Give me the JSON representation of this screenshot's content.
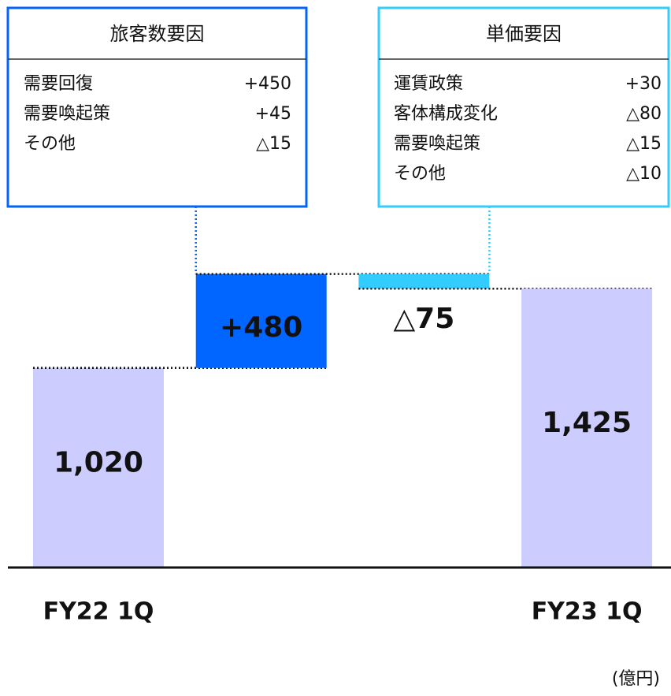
{
  "chart_data": {
    "type": "waterfall",
    "categories": [
      "FY22 1Q",
      null,
      null,
      "FY23 1Q"
    ],
    "values": [
      1020,
      480,
      -75,
      1425
    ],
    "value_labels": [
      "1,020",
      "+480",
      "△75",
      "1,425"
    ],
    "colors": [
      "#ccccff",
      "#0066ff",
      "#33ccff",
      "#ccccff"
    ],
    "ylim": [
      0,
      2900
    ],
    "unit": "(億円)",
    "annotations": [
      {
        "title": "旅客数要因",
        "color": "#0066ff",
        "items": [
          {
            "label": "需要回復",
            "value": "+450"
          },
          {
            "label": "需要喚起策",
            "value": "+45"
          },
          {
            "label": "その他",
            "value": "△15"
          }
        ]
      },
      {
        "title": "単価要因",
        "color": "#33ccff",
        "items": [
          {
            "label": "運賃政策",
            "value": "+30"
          },
          {
            "label": "客体構成変化",
            "value": "△80"
          },
          {
            "label": "需要喚起策",
            "value": "△15"
          },
          {
            "label": "その他",
            "value": "△10"
          }
        ]
      }
    ]
  }
}
